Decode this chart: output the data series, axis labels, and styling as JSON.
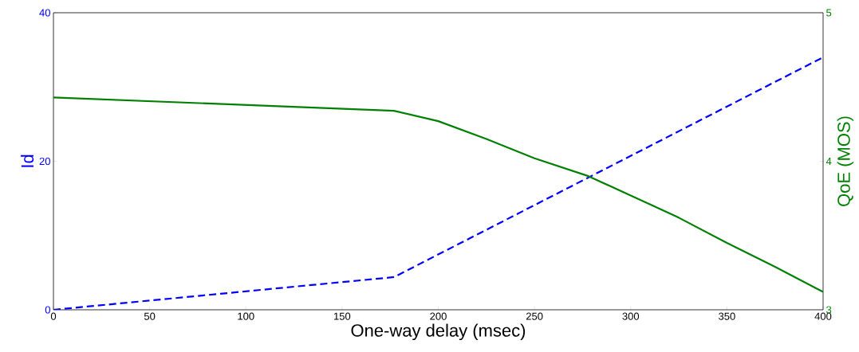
{
  "chart_data": {
    "type": "line",
    "xlabel": "One-way delay (msec)",
    "ylabel": "Id",
    "y2label": "QoE (MOS)",
    "xlim": [
      0,
      400
    ],
    "xticks": [
      0,
      50,
      100,
      150,
      200,
      250,
      300,
      350,
      400
    ],
    "ylim": [
      0,
      40
    ],
    "yticks": [
      0,
      20,
      40
    ],
    "y2lim": [
      3,
      5
    ],
    "y2ticks": [
      3,
      4,
      5
    ],
    "grid": false,
    "series": [
      {
        "color": "#0000ff",
        "line_style": "dashed",
        "axis": "y",
        "x": [
          0,
          177,
          400
        ],
        "values": [
          0,
          4.4,
          34
        ]
      },
      {
        "color": "#008000",
        "line_style": "solid",
        "axis": "y2",
        "x": [
          0,
          177,
          200,
          225,
          250,
          278,
          300,
          325,
          350,
          375,
          400
        ],
        "values": [
          4.43,
          4.34,
          4.27,
          4.15,
          4.02,
          3.9,
          3.77,
          3.62,
          3.45,
          3.29,
          3.12
        ]
      }
    ]
  }
}
